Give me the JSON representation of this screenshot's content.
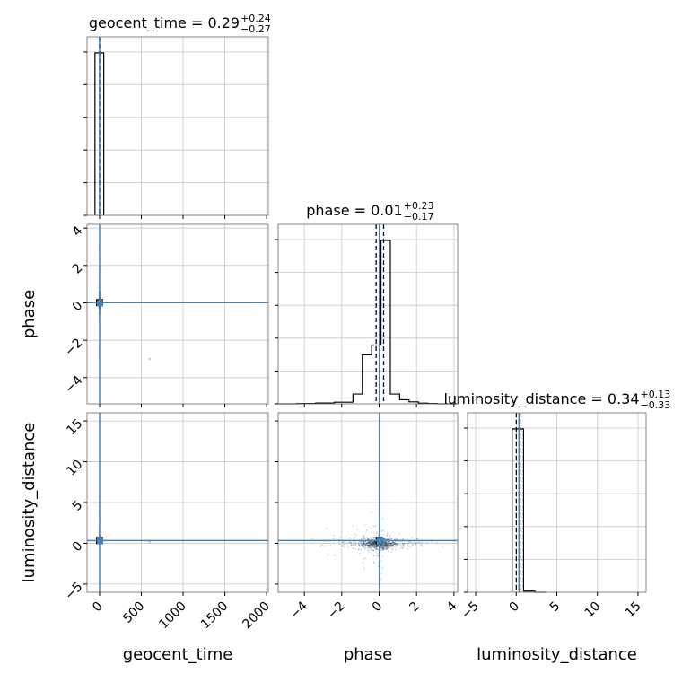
{
  "chart_data": {
    "type": "corner",
    "variables": [
      "geocent_time",
      "phase",
      "luminosity_distance"
    ],
    "truth_color": "#4682b4",
    "truths": {
      "geocent_time": 0.29,
      "phase": 0.01,
      "luminosity_distance": 0.34
    },
    "titles": [
      {
        "variable": "geocent_time",
        "text": "geocent_time = 0.29",
        "sup": "+0.24",
        "sub": "−0.27"
      },
      {
        "variable": "phase",
        "text": "phase = 0.01",
        "sup": "+0.23",
        "sub": "−0.17"
      },
      {
        "variable": "luminosity_distance",
        "text": "luminosity_distance = 0.34",
        "sup": "+0.13",
        "sub": "−0.33"
      }
    ],
    "axis_labels": {
      "x": [
        "geocent_time",
        "phase",
        "luminosity_distance"
      ],
      "y": [
        "phase",
        "luminosity_distance"
      ]
    },
    "ranges": {
      "geocent_time": [
        -150,
        2020
      ],
      "phase": [
        -5.4,
        4.2
      ],
      "luminosity_distance": [
        -6,
        16
      ]
    },
    "ticks": {
      "geocent_time": [
        0,
        500,
        1000,
        1500,
        2000
      ],
      "phase": [
        -4,
        -2,
        0,
        2,
        4
      ],
      "luminosity_distance_x": [
        -5,
        0,
        5,
        10,
        15
      ],
      "luminosity_distance_y": [
        -5,
        0,
        5,
        10,
        15
      ]
    },
    "tick_labels": {
      "geocent_time": [
        "0",
        "500",
        "1000",
        "1500",
        "2000"
      ],
      "phase": [
        "−4",
        "−2",
        "0",
        "2",
        "4"
      ],
      "luminosity_distance": [
        "−5",
        "0",
        "5",
        "10",
        "15"
      ]
    },
    "histograms": {
      "geocent_time": {
        "edges": [
          -55,
          50
        ],
        "counts": [
          1.0
        ]
      },
      "phase": {
        "edges": [
          -5.4,
          -4.4,
          -3.4,
          -2.4,
          -1.4,
          -0.9,
          -0.4,
          0.1,
          0.6,
          1.1,
          1.6,
          2.1,
          2.6,
          3.1,
          4.2
        ],
        "counts": [
          0.0,
          0.002,
          0.005,
          0.01,
          0.06,
          0.3,
          0.36,
          1.0,
          0.06,
          0.025,
          0.012,
          0.004,
          0.002,
          0.0
        ]
      },
      "luminosity_distance": {
        "edges": [
          -0.5,
          0.9,
          2.3,
          3.7
        ],
        "counts": [
          1.0,
          0.007,
          0.0
        ]
      }
    },
    "grid": true
  }
}
